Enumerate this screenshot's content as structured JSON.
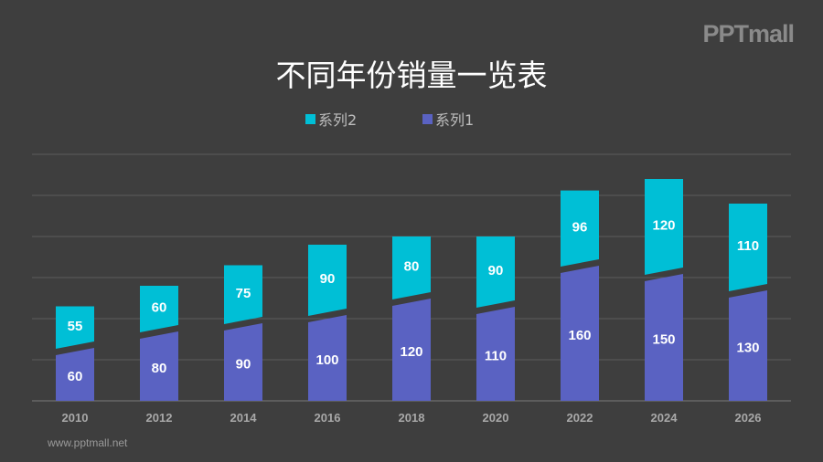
{
  "logo": "PPTmall",
  "footer": "www.pptmall.net",
  "chart_data": {
    "type": "bar",
    "stacked": true,
    "title": "不同年份销量一览表",
    "categories": [
      "2010",
      "2012",
      "2014",
      "2016",
      "2018",
      "2020",
      "2022",
      "2024",
      "2026"
    ],
    "series": [
      {
        "name": "系列1",
        "color": "#5a62c2",
        "values": [
          60,
          80,
          90,
          100,
          120,
          110,
          160,
          150,
          130
        ]
      },
      {
        "name": "系列2",
        "color": "#00bfd6",
        "values": [
          55,
          60,
          75,
          90,
          80,
          90,
          96,
          120,
          110
        ]
      }
    ],
    "ylim": [
      0,
      300
    ],
    "grid": true,
    "legend": "top-center",
    "legend_order": [
      "系列2",
      "系列1"
    ]
  }
}
